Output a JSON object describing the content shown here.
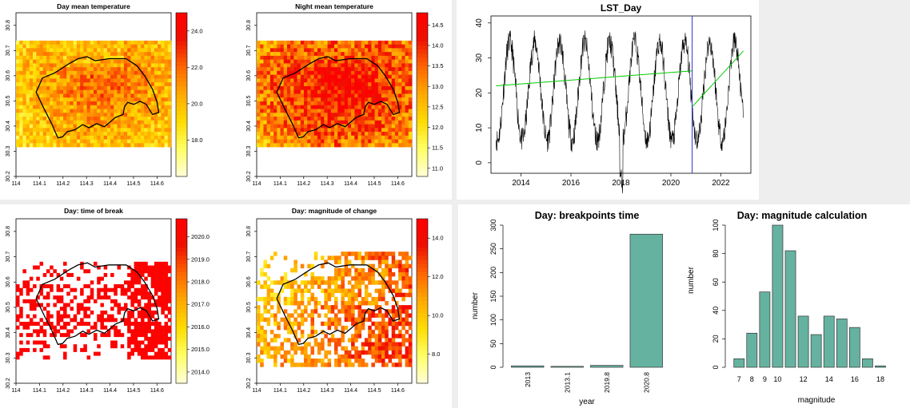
{
  "colors": {
    "ramp": [
      "#ffffd9",
      "#ffff66",
      "#ffdd00",
      "#ffaa00",
      "#ff6600",
      "#ee1100",
      "#ff0000"
    ],
    "bar_fill": "#66b2a1",
    "trend": "#00cc00",
    "breakpoint_line": "#3333cc",
    "boundary": "#000000"
  },
  "chart_data": [
    {
      "type": "heatmap",
      "title": "Day mean temperature",
      "xlim": [
        114.0,
        114.66
      ],
      "ylim": [
        30.2,
        30.85
      ],
      "x_ticks": [
        "114",
        "114.1",
        "114.2",
        "114.3",
        "114.4",
        "114.5",
        "114.6"
      ],
      "y_ticks": [
        "30.2",
        "30.3",
        "30.4",
        "30.5",
        "30.6",
        "30.7",
        "30.8"
      ],
      "legend_ticks": [
        "18.0",
        "20.0",
        "22.0",
        "24.0"
      ],
      "value_range": [
        16.0,
        25.0
      ]
    },
    {
      "type": "heatmap",
      "title": "Night mean temperature",
      "xlim": [
        114.0,
        114.66
      ],
      "ylim": [
        30.2,
        30.85
      ],
      "x_ticks": [
        "114",
        "114.1",
        "114.2",
        "114.3",
        "114.4",
        "114.5",
        "114.6"
      ],
      "y_ticks": [
        "30.2",
        "30.3",
        "30.4",
        "30.5",
        "30.6",
        "30.7",
        "30.8"
      ],
      "legend_ticks": [
        "11.0",
        "11.5",
        "12.0",
        "12.5",
        "13.0",
        "13.5",
        "14.0",
        "14.5"
      ],
      "value_range": [
        10.8,
        14.8
      ]
    },
    {
      "type": "line",
      "title": "LST_Day",
      "xlim": [
        2012.8,
        2023.2
      ],
      "ylim": [
        -3,
        42
      ],
      "x_ticks": [
        "2014",
        "2016",
        "2018",
        "2020",
        "2022"
      ],
      "y_ticks": [
        "0",
        "10",
        "20",
        "30",
        "40"
      ],
      "breakpoint": 2020.85,
      "trend_segments": [
        {
          "x": [
            2013.0,
            2020.85
          ],
          "y": [
            22.0,
            26.3
          ]
        },
        {
          "x": [
            2020.85,
            2022.9
          ],
          "y": [
            16.0,
            32.0
          ]
        }
      ],
      "series_description": "seasonal cycle, peaks ~35-40 in summer, troughs ~3-10 in winter"
    },
    {
      "type": "heatmap",
      "title": "Day: time of break",
      "xlim": [
        114.0,
        114.66
      ],
      "ylim": [
        30.2,
        30.85
      ],
      "x_ticks": [
        "114",
        "114.1",
        "114.2",
        "114.3",
        "114.4",
        "114.5",
        "114.6"
      ],
      "y_ticks": [
        "30.2",
        "30.3",
        "30.4",
        "30.5",
        "30.6",
        "30.7",
        "30.8"
      ],
      "legend_ticks": [
        "2014.0",
        "2015.0",
        "2016.0",
        "2017.0",
        "2018.0",
        "2019.0",
        "2020.0"
      ],
      "value_range": [
        2013.5,
        2020.8
      ]
    },
    {
      "type": "heatmap",
      "title": "Day: magnitude of change",
      "xlim": [
        114.0,
        114.66
      ],
      "ylim": [
        30.2,
        30.85
      ],
      "x_ticks": [
        "114",
        "114.1",
        "114.2",
        "114.3",
        "114.4",
        "114.5",
        "114.6"
      ],
      "y_ticks": [
        "30.2",
        "30.3",
        "30.4",
        "30.5",
        "30.6",
        "30.7",
        "30.8"
      ],
      "legend_ticks": [
        "8.0",
        "10.0",
        "12.0",
        "14.0"
      ],
      "value_range": [
        6.5,
        15.0
      ]
    },
    {
      "type": "bar",
      "title": "Day: breakpoints time",
      "xlabel": "year",
      "ylabel": "number",
      "categories": [
        "2013",
        "2013.1",
        "2019.8",
        "2020.8"
      ],
      "values": [
        3,
        2,
        4,
        281
      ],
      "ylim": [
        0,
        300
      ],
      "y_ticks": [
        "0",
        "50",
        "100",
        "150",
        "200",
        "250",
        "300"
      ]
    },
    {
      "type": "bar",
      "title": "Day: magnitude calculation",
      "xlabel": "magnitude",
      "ylabel": "number",
      "bin_start": 6.5,
      "bin_width": 1,
      "values": [
        6,
        24,
        53,
        100,
        82,
        36,
        23,
        36,
        34,
        28,
        6,
        1
      ],
      "ylim": [
        0,
        100
      ],
      "x_ticks": [
        "7",
        "8",
        "9",
        "10",
        "12",
        "14",
        "16",
        "18"
      ],
      "y_ticks": [
        "0",
        "20",
        "40",
        "60",
        "80",
        "100"
      ]
    }
  ]
}
